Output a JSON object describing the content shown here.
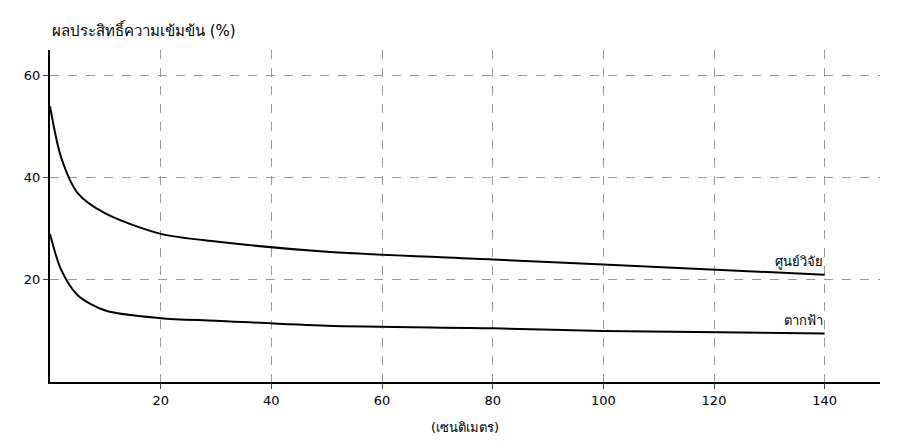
{
  "chart_data": {
    "type": "line",
    "y_label": "ผลประสิทธิ์ความเข้มข้น (%)",
    "x_label": "(เซนติเมตร)",
    "series": [
      {
        "name": "ศูนย์วิจัย",
        "color": "#000000",
        "x": [
          0,
          2,
          5,
          10,
          20,
          30,
          50,
          80,
          100,
          140
        ],
        "values": [
          54,
          44,
          37,
          33,
          29,
          27.5,
          25.5,
          24,
          23,
          21
        ]
      },
      {
        "name": "ตากฟ้า",
        "color": "#000000",
        "x": [
          0,
          2,
          5,
          10,
          20,
          30,
          50,
          80,
          100,
          140
        ],
        "values": [
          29,
          22,
          17,
          14,
          12.5,
          12,
          11,
          10.5,
          10,
          9.5
        ]
      }
    ],
    "xlim": [
      0,
      150
    ],
    "xticks": [
      20,
      40,
      60,
      80,
      100,
      120,
      140
    ],
    "ylim": [
      0,
      65
    ],
    "yticks": [
      20,
      40,
      60
    ],
    "grid": true
  }
}
